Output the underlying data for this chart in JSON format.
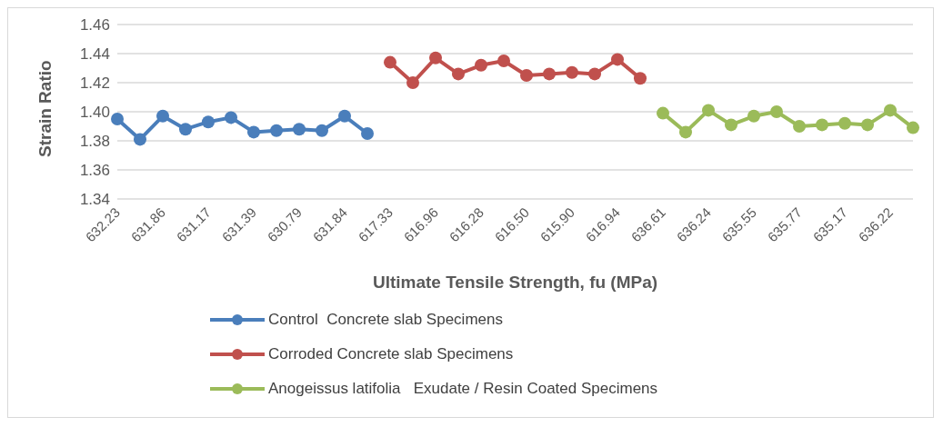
{
  "chart_data": {
    "type": "line",
    "xlabel": "Ultimate Tensile Strength, fu (MPa)",
    "ylabel": "Strain Ratio",
    "categories": [
      "632.23",
      null,
      "631.86",
      null,
      "631.17",
      null,
      "631.39",
      null,
      "630.79",
      null,
      "631.84",
      null,
      "617.33",
      null,
      "616.96",
      null,
      "616.28",
      null,
      "616.50",
      null,
      "615.90",
      null,
      "616.94",
      null,
      "636.61",
      null,
      "636.24",
      null,
      "635.55",
      null,
      "635.77",
      null,
      "635.17",
      null,
      "636.22",
      null
    ],
    "series": [
      {
        "name": "Control  Concrete slab Specimens",
        "color": "#4a7ebb",
        "values": [
          1.395,
          1.381,
          1.397,
          1.388,
          1.393,
          1.396,
          1.386,
          1.387,
          1.388,
          1.387,
          1.397,
          1.385,
          null,
          null,
          null,
          null,
          null,
          null,
          null,
          null,
          null,
          null,
          null,
          null,
          null,
          null,
          null,
          null,
          null,
          null,
          null,
          null,
          null,
          null,
          null,
          null
        ]
      },
      {
        "name": "Corroded Concrete slab Specimens",
        "color": "#c0504d",
        "values": [
          null,
          null,
          null,
          null,
          null,
          null,
          null,
          null,
          null,
          null,
          null,
          null,
          1.434,
          1.42,
          1.437,
          1.426,
          1.432,
          1.435,
          1.425,
          1.426,
          1.427,
          1.426,
          1.436,
          1.423,
          null,
          null,
          null,
          null,
          null,
          null,
          null,
          null,
          null,
          null,
          null,
          null
        ]
      },
      {
        "name": "Anogeissus latifolia   Exudate / Resin Coated Specimens",
        "color": "#9bbb59",
        "values": [
          null,
          null,
          null,
          null,
          null,
          null,
          null,
          null,
          null,
          null,
          null,
          null,
          null,
          null,
          null,
          null,
          null,
          null,
          null,
          null,
          null,
          null,
          null,
          null,
          1.399,
          1.386,
          1.401,
          1.391,
          1.397,
          1.4,
          1.39,
          1.391,
          1.392,
          1.391,
          1.401,
          1.389
        ]
      }
    ],
    "ylim": [
      1.34,
      1.46
    ],
    "yticks": [
      {
        "value": 1.34,
        "label": "1.34"
      },
      {
        "value": 1.36,
        "label": "1.36"
      },
      {
        "value": 1.38,
        "label": "1.38"
      },
      {
        "value": 1.4,
        "label": "1.40"
      },
      {
        "value": 1.42,
        "label": "1.42"
      },
      {
        "value": 1.44,
        "label": "1.44"
      },
      {
        "value": 1.46,
        "label": "1.46"
      }
    ],
    "grid": "y",
    "legend": "bottom",
    "marker": "circle",
    "line_style": "solid"
  }
}
